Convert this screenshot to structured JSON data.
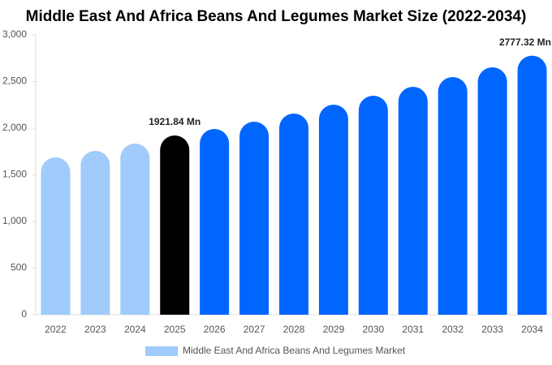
{
  "chart_data": {
    "type": "bar",
    "title": "Middle East And Africa Beans And Legumes Market Size (2022-2034)",
    "categories": [
      "2022",
      "2023",
      "2024",
      "2025",
      "2026",
      "2027",
      "2028",
      "2029",
      "2030",
      "2031",
      "2032",
      "2033",
      "2034"
    ],
    "series": [
      {
        "name": "Middle East And Africa Beans And Legumes Market",
        "color": "#a0cbfb",
        "colors": [
          "#a0cbfb",
          "#a0cbfb",
          "#a0cbfb",
          "#000000",
          "#0066ff",
          "#0066ff",
          "#0066ff",
          "#0066ff",
          "#0066ff",
          "#0066ff",
          "#0066ff",
          "#0066ff",
          "#0066ff"
        ],
        "values": [
          1687,
          1757,
          1835,
          1921.84,
          1991,
          2070,
          2157,
          2252,
          2348,
          2443,
          2548,
          2652,
          2777.32
        ],
        "value_labels": [
          null,
          null,
          null,
          "1921.84 Mn",
          null,
          null,
          null,
          null,
          null,
          null,
          null,
          null,
          "2777.32 Mn"
        ]
      }
    ],
    "ylim": [
      0,
      3000
    ],
    "yticks": [
      0,
      500,
      {
        "value": 1000,
        "label": "1,000"
      },
      {
        "value": 1500,
        "label": "1,500"
      },
      {
        "value": 2000,
        "label": "2,000"
      },
      {
        "value": 2500,
        "label": "2,500"
      },
      {
        "value": 3000,
        "label": "3,000"
      }
    ],
    "grid": false
  }
}
